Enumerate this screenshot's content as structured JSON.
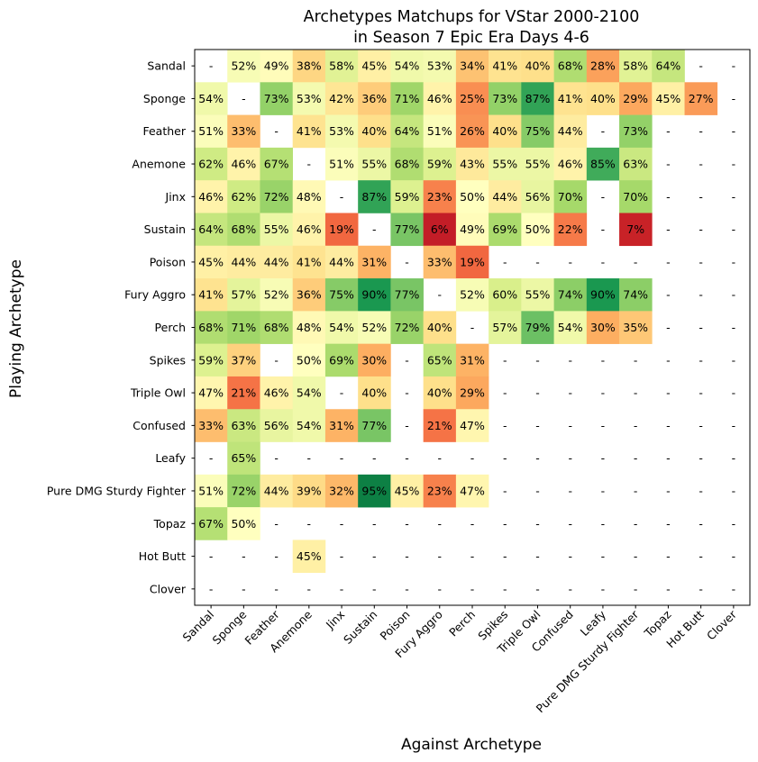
{
  "chart_data": {
    "type": "heatmap",
    "title": [
      "Archetypes Matchups for VStar 2000-2100",
      "in Season 7 Epic Era Days 4-6"
    ],
    "xlabel": "Against Archetype",
    "ylabel": "Playing Archetype",
    "columns": [
      "Sandal",
      "Sponge",
      "Feather",
      "Anemone",
      "Jinx",
      "Sustain",
      "Poison",
      "Fury Aggro",
      "Perch",
      "Spikes",
      "Triple Owl",
      "Confused",
      "Leafy",
      "Pure DMG Sturdy Fighter",
      "Topaz",
      "Hot Butt",
      "Clover"
    ],
    "rows": [
      "Sandal",
      "Sponge",
      "Feather",
      "Anemone",
      "Jinx",
      "Sustain",
      "Poison",
      "Fury Aggro",
      "Perch",
      "Spikes",
      "Triple Owl",
      "Confused",
      "Leafy",
      "Pure DMG Sturdy Fighter",
      "Topaz",
      "Hot Butt",
      "Clover"
    ],
    "missing_label": "-",
    "color_scale": "RdYlGn",
    "value_range": [
      0,
      100
    ],
    "values": [
      [
        null,
        52,
        49,
        38,
        58,
        45,
        54,
        53,
        34,
        41,
        40,
        68,
        28,
        58,
        64,
        null,
        null
      ],
      [
        54,
        null,
        73,
        53,
        42,
        36,
        71,
        46,
        25,
        73,
        87,
        41,
        40,
        29,
        45,
        27,
        null
      ],
      [
        51,
        33,
        null,
        41,
        53,
        40,
        64,
        51,
        26,
        40,
        75,
        44,
        null,
        73,
        null,
        null,
        null
      ],
      [
        62,
        46,
        67,
        null,
        51,
        55,
        68,
        59,
        43,
        55,
        55,
        46,
        85,
        63,
        null,
        null,
        null
      ],
      [
        46,
        62,
        72,
        48,
        null,
        87,
        59,
        23,
        50,
        44,
        56,
        70,
        null,
        70,
        null,
        null,
        null
      ],
      [
        64,
        68,
        55,
        46,
        19,
        null,
        77,
        6,
        49,
        69,
        50,
        22,
        null,
        7,
        null,
        null,
        null
      ],
      [
        45,
        44,
        44,
        41,
        44,
        31,
        null,
        33,
        19,
        null,
        null,
        null,
        null,
        null,
        null,
        null,
        null
      ],
      [
        41,
        57,
        52,
        36,
        75,
        90,
        77,
        null,
        52,
        60,
        55,
        74,
        90,
        74,
        null,
        null,
        null
      ],
      [
        68,
        71,
        68,
        48,
        54,
        52,
        72,
        40,
        null,
        57,
        79,
        54,
        30,
        35,
        null,
        null,
        null
      ],
      [
        59,
        37,
        null,
        50,
        69,
        30,
        null,
        65,
        31,
        null,
        null,
        null,
        null,
        null,
        null,
        null,
        null
      ],
      [
        47,
        21,
        46,
        54,
        null,
        40,
        null,
        40,
        29,
        null,
        null,
        null,
        null,
        null,
        null,
        null,
        null
      ],
      [
        33,
        63,
        56,
        54,
        31,
        77,
        null,
        21,
        47,
        null,
        null,
        null,
        null,
        null,
        null,
        null,
        null
      ],
      [
        null,
        65,
        null,
        null,
        null,
        null,
        null,
        null,
        null,
        null,
        null,
        null,
        null,
        null,
        null,
        null,
        null
      ],
      [
        51,
        72,
        44,
        39,
        32,
        95,
        45,
        23,
        47,
        null,
        null,
        null,
        null,
        null,
        null,
        null,
        null
      ],
      [
        67,
        50,
        null,
        null,
        null,
        null,
        null,
        null,
        null,
        null,
        null,
        null,
        null,
        null,
        null,
        null,
        null
      ],
      [
        null,
        null,
        null,
        45,
        null,
        null,
        null,
        null,
        null,
        null,
        null,
        null,
        null,
        null,
        null,
        null,
        null
      ],
      [
        null,
        null,
        null,
        null,
        null,
        null,
        null,
        null,
        null,
        null,
        null,
        null,
        null,
        null,
        null,
        null,
        null
      ]
    ]
  }
}
